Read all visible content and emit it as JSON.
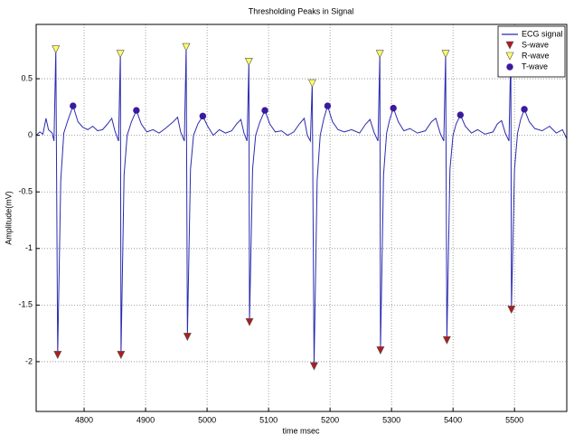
{
  "chart_data": {
    "type": "line",
    "title": "Thresholding Peaks in Signal",
    "xlabel": "time msec",
    "ylabel": "Amplitude(mV)",
    "xlim": [
      4722,
      5585
    ],
    "ylim": [
      -2.44,
      0.98
    ],
    "xticks": [
      4800,
      4900,
      5000,
      5100,
      5200,
      5300,
      5400,
      5500
    ],
    "yticks": [
      -2,
      -1.5,
      -1,
      -0.5,
      0,
      0.5
    ],
    "grid": true,
    "legend": "upper right",
    "series": [
      {
        "name": "ECG signal",
        "kind": "line",
        "color": "#2b2bb0",
        "x": [
          4722,
          4728,
          4733,
          4738,
          4742,
          4748,
          4751,
          4754,
          4757,
          4762,
          4767,
          4774,
          4782,
          4790,
          4798,
          4806,
          4814,
          4822,
          4830,
          4838,
          4845,
          4850,
          4856,
          4859,
          4860,
          4865,
          4870,
          4877,
          4885,
          4893,
          4902,
          4912,
          4922,
          4932,
          4945,
          4952,
          4957,
          4963,
          4966,
          4968,
          4973,
          4978,
          4985,
          4993,
          5001,
          5010,
          5020,
          5030,
          5040,
          5048,
          5055,
          5060,
          5065,
          5068,
          5069,
          5074,
          5079,
          5086,
          5094,
          5102,
          5111,
          5121,
          5131,
          5141,
          5150,
          5158,
          5163,
          5168,
          5171,
          5174,
          5179,
          5184,
          5190,
          5196,
          5204,
          5213,
          5223,
          5235,
          5248,
          5258,
          5265,
          5272,
          5278,
          5281,
          5282,
          5287,
          5292,
          5297,
          5303,
          5311,
          5320,
          5330,
          5342,
          5355,
          5365,
          5372,
          5379,
          5385,
          5388,
          5390,
          5395,
          5400,
          5405,
          5412,
          5420,
          5430,
          5440,
          5452,
          5465,
          5472,
          5479,
          5485,
          5491,
          5494,
          5495,
          5500,
          5505,
          5510,
          5516,
          5524,
          5533,
          5545,
          5557,
          5568,
          5578,
          5585
        ],
        "values": [
          0.0,
          0.03,
          0.01,
          0.15,
          0.05,
          0.02,
          -0.05,
          0.76,
          -1.94,
          -0.4,
          0.02,
          0.14,
          0.26,
          0.12,
          0.07,
          0.05,
          0.08,
          0.04,
          0.05,
          0.1,
          0.15,
          0.04,
          -0.05,
          0.72,
          -1.94,
          -0.35,
          0.0,
          0.12,
          0.22,
          0.1,
          0.03,
          0.05,
          0.02,
          0.06,
          0.12,
          0.16,
          0.03,
          -0.05,
          0.78,
          -1.78,
          -0.3,
          0.0,
          0.1,
          0.17,
          0.08,
          0.0,
          0.05,
          0.02,
          0.04,
          0.1,
          0.14,
          0.02,
          -0.05,
          0.65,
          -1.65,
          -0.3,
          0.0,
          0.12,
          0.22,
          0.1,
          0.03,
          0.04,
          0.0,
          0.03,
          0.1,
          0.15,
          0.0,
          -0.05,
          0.46,
          -2.04,
          -0.4,
          0.0,
          0.15,
          0.26,
          0.12,
          0.05,
          0.03,
          0.05,
          0.02,
          0.1,
          0.14,
          0.02,
          -0.05,
          0.72,
          -1.9,
          -0.35,
          0.02,
          0.14,
          0.24,
          0.12,
          0.04,
          0.06,
          0.02,
          0.04,
          0.12,
          0.15,
          0.02,
          -0.05,
          0.72,
          -1.81,
          -0.3,
          0.0,
          0.1,
          0.18,
          0.08,
          0.02,
          0.05,
          0.01,
          0.03,
          0.1,
          0.13,
          0.02,
          -0.05,
          0.75,
          -1.54,
          -0.3,
          0.02,
          0.14,
          0.23,
          0.12,
          0.06,
          0.04,
          0.08,
          0.02,
          0.05,
          -0.03
        ]
      },
      {
        "name": "S-wave",
        "kind": "scatter",
        "marker": "v",
        "color": "#b01c1c",
        "x": [
          4757,
          4860,
          4968,
          5069,
          5174,
          5282,
          5390,
          5495
        ],
        "values": [
          -1.94,
          -1.94,
          -1.78,
          -1.65,
          -2.04,
          -1.9,
          -1.81,
          -1.54
        ]
      },
      {
        "name": "R-wave",
        "kind": "scatter",
        "marker": "v",
        "color": "#ffff66",
        "x": [
          4754,
          4859,
          4966,
          5068,
          5171,
          5281,
          5388,
          5494
        ],
        "values": [
          0.76,
          0.72,
          0.78,
          0.65,
          0.46,
          0.72,
          0.72,
          0.75
        ]
      },
      {
        "name": "T-wave",
        "kind": "scatter",
        "marker": "o",
        "color": "#3a1a9e",
        "x": [
          4782,
          4885,
          4993,
          5094,
          5196,
          5303,
          5412,
          5516
        ],
        "values": [
          0.26,
          0.22,
          0.17,
          0.22,
          0.26,
          0.24,
          0.18,
          0.23
        ]
      }
    ]
  }
}
